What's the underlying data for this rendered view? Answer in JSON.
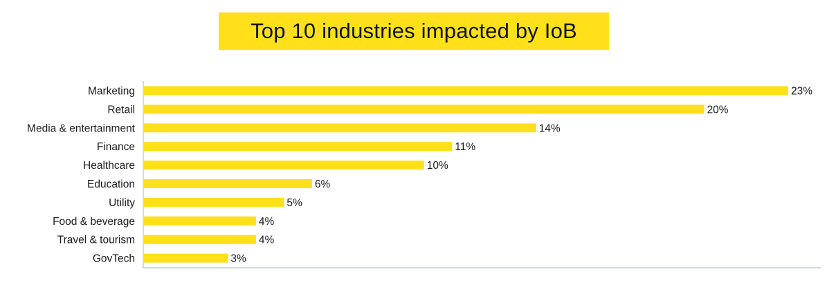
{
  "chart_data": {
    "type": "bar",
    "orientation": "horizontal",
    "title": "Top 10 industries impacted by IoB",
    "categories": [
      "Marketing",
      "Retail",
      "Media & entertainment",
      "Finance",
      "Healthcare",
      "Education",
      "Utility",
      "Food & beverage",
      "Travel & tourism",
      "GovTech"
    ],
    "values": [
      23,
      20,
      14,
      11,
      10,
      6,
      5,
      4,
      4,
      3
    ],
    "value_labels": [
      "23%",
      "20%",
      "14%",
      "11%",
      "10%",
      "6%",
      "5%",
      "4%",
      "4%",
      "3%"
    ],
    "unit": "%",
    "xlim": [
      0,
      23
    ],
    "grid": false,
    "legend": "none"
  },
  "colors": {
    "bar": "#FFE01B",
    "title_background": "#FFE01B",
    "axis": "#a9b3bd",
    "text": "#1a1a1a"
  }
}
